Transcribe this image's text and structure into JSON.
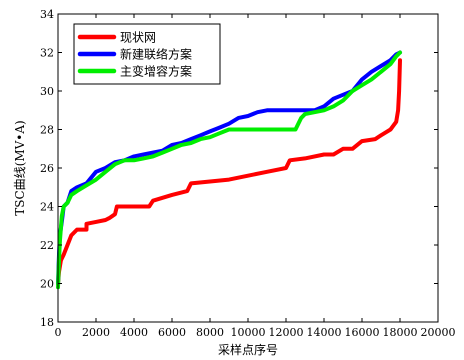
{
  "chart_data": {
    "type": "line",
    "title": "",
    "xlabel": "采样点序号",
    "ylabel": "TSC曲线(MV•A)",
    "xlim": [
      0,
      20000
    ],
    "ylim": [
      18,
      34
    ],
    "xticks": [
      0,
      2000,
      4000,
      6000,
      8000,
      10000,
      12000,
      14000,
      16000,
      18000,
      20000
    ],
    "yticks": [
      18,
      20,
      22,
      24,
      26,
      28,
      30,
      32,
      34
    ],
    "grid": false,
    "legend_position": "top-left",
    "series": [
      {
        "name": "现状网",
        "color": "#ff0000",
        "points": [
          [
            0,
            20
          ],
          [
            50,
            20.6
          ],
          [
            150,
            21.2
          ],
          [
            300,
            21.5
          ],
          [
            500,
            22
          ],
          [
            700,
            22.5
          ],
          [
            1000,
            22.8
          ],
          [
            1500,
            22.8
          ],
          [
            1500,
            23.1
          ],
          [
            2000,
            23.2
          ],
          [
            2500,
            23.3
          ],
          [
            2700,
            23.4
          ],
          [
            3000,
            23.6
          ],
          [
            3100,
            24
          ],
          [
            4000,
            24
          ],
          [
            4800,
            24
          ],
          [
            5000,
            24.3
          ],
          [
            6000,
            24.6
          ],
          [
            6800,
            24.8
          ],
          [
            7000,
            25.2
          ],
          [
            8000,
            25.3
          ],
          [
            9000,
            25.4
          ],
          [
            10000,
            25.6
          ],
          [
            11000,
            25.8
          ],
          [
            12000,
            26
          ],
          [
            12200,
            26.4
          ],
          [
            13000,
            26.5
          ],
          [
            14000,
            26.7
          ],
          [
            14500,
            26.7
          ],
          [
            15000,
            27
          ],
          [
            15500,
            27
          ],
          [
            16000,
            27.4
          ],
          [
            16700,
            27.5
          ],
          [
            17000,
            27.7
          ],
          [
            17500,
            28
          ],
          [
            17800,
            28.4
          ],
          [
            17900,
            29
          ],
          [
            17950,
            30
          ],
          [
            18000,
            31.6
          ]
        ]
      },
      {
        "name": "新建联络方案",
        "color": "#0000ff",
        "points": [
          [
            0,
            20
          ],
          [
            50,
            21.5
          ],
          [
            100,
            22.5
          ],
          [
            200,
            23.2
          ],
          [
            300,
            24
          ],
          [
            500,
            24.2
          ],
          [
            700,
            24.8
          ],
          [
            1000,
            25
          ],
          [
            1500,
            25.2
          ],
          [
            2000,
            25.8
          ],
          [
            2500,
            26
          ],
          [
            3000,
            26.3
          ],
          [
            3500,
            26.4
          ],
          [
            4000,
            26.6
          ],
          [
            4500,
            26.7
          ],
          [
            5000,
            26.8
          ],
          [
            5500,
            26.9
          ],
          [
            6000,
            27.2
          ],
          [
            6500,
            27.3
          ],
          [
            7000,
            27.5
          ],
          [
            7500,
            27.7
          ],
          [
            8000,
            27.9
          ],
          [
            8500,
            28.1
          ],
          [
            9000,
            28.3
          ],
          [
            9500,
            28.6
          ],
          [
            10000,
            28.7
          ],
          [
            10500,
            28.9
          ],
          [
            11000,
            29
          ],
          [
            12000,
            29
          ],
          [
            13000,
            29
          ],
          [
            13500,
            29
          ],
          [
            14000,
            29.2
          ],
          [
            14500,
            29.6
          ],
          [
            15000,
            29.8
          ],
          [
            15500,
            30
          ],
          [
            16000,
            30.6
          ],
          [
            16500,
            31
          ],
          [
            17000,
            31.3
          ],
          [
            17500,
            31.6
          ],
          [
            17800,
            31.9
          ],
          [
            18000,
            32
          ]
        ]
      },
      {
        "name": "主变增容方案",
        "color": "#00ee00",
        "points": [
          [
            0,
            19.8
          ],
          [
            50,
            21.2
          ],
          [
            100,
            22.2
          ],
          [
            200,
            23.5
          ],
          [
            300,
            24
          ],
          [
            500,
            24.2
          ],
          [
            700,
            24.6
          ],
          [
            1000,
            24.8
          ],
          [
            1500,
            25.1
          ],
          [
            2000,
            25.4
          ],
          [
            2500,
            25.8
          ],
          [
            3000,
            26.2
          ],
          [
            3500,
            26.4
          ],
          [
            4000,
            26.4
          ],
          [
            4500,
            26.5
          ],
          [
            5000,
            26.6
          ],
          [
            5500,
            26.8
          ],
          [
            6000,
            27
          ],
          [
            6500,
            27.2
          ],
          [
            7000,
            27.3
          ],
          [
            7500,
            27.5
          ],
          [
            8000,
            27.6
          ],
          [
            8500,
            27.8
          ],
          [
            9000,
            28
          ],
          [
            10000,
            28
          ],
          [
            11000,
            28
          ],
          [
            12000,
            28
          ],
          [
            12500,
            28
          ],
          [
            12800,
            28.6
          ],
          [
            13000,
            28.8
          ],
          [
            13500,
            28.9
          ],
          [
            14000,
            29
          ],
          [
            14500,
            29.2
          ],
          [
            15000,
            29.5
          ],
          [
            15500,
            30
          ],
          [
            16000,
            30.3
          ],
          [
            16500,
            30.6
          ],
          [
            17000,
            31
          ],
          [
            17500,
            31.4
          ],
          [
            17800,
            31.8
          ],
          [
            18000,
            32
          ]
        ]
      }
    ]
  }
}
